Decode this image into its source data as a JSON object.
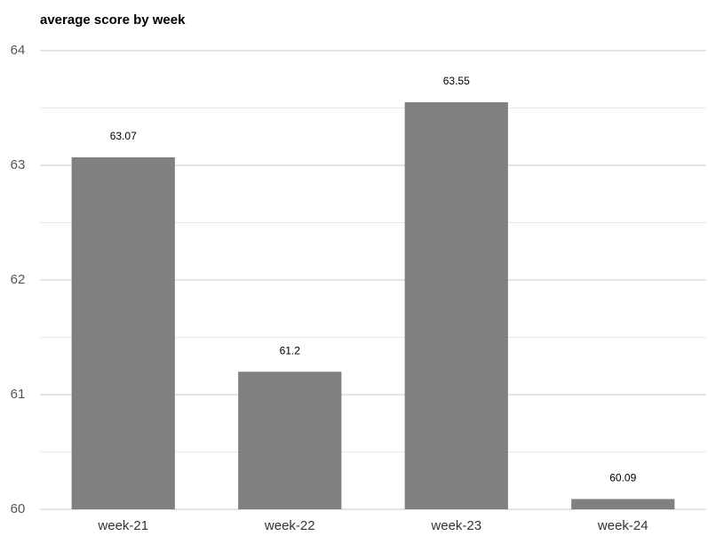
{
  "chart_data": {
    "type": "bar",
    "title": "average score by week",
    "categories": [
      "week-21",
      "week-22",
      "week-23",
      "week-24"
    ],
    "values": [
      63.07,
      61.2,
      63.55,
      60.09
    ],
    "color": "#808080",
    "ylim": [
      60,
      64
    ],
    "yticks": [
      60,
      61,
      62,
      63,
      64
    ],
    "minor_yticks": [
      60.5,
      61.5,
      62.5,
      63.5
    ],
    "grid": true
  }
}
